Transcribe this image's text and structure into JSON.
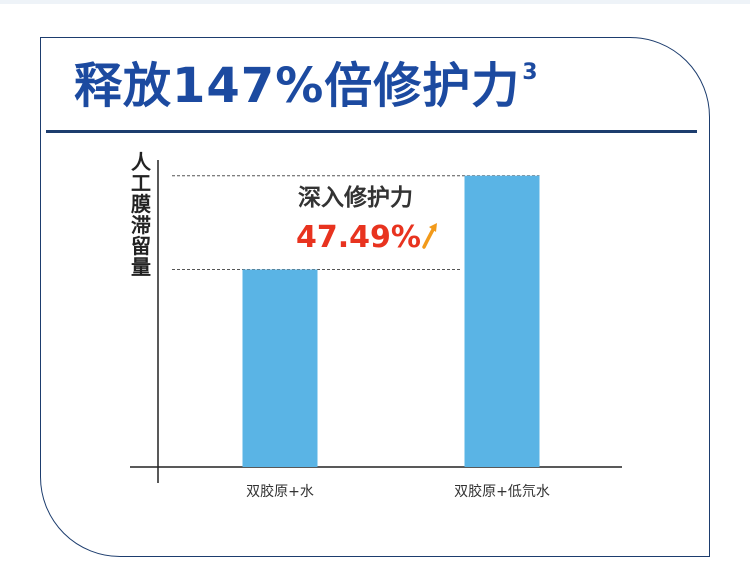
{
  "title": {
    "text": "释放147%倍修护力",
    "superscript": "3"
  },
  "chart_data": {
    "type": "bar",
    "categories": [
      "双胶原+水",
      "双胶原+低氘水"
    ],
    "values": [
      1.0,
      1.4749
    ],
    "ylabel": "人工膜滞留量",
    "ylim": [
      0,
      1.6
    ],
    "bar_color": "#5ab4e5",
    "annotation": {
      "label": "深入修护力",
      "value": "47.49%",
      "color": "#e8331f",
      "arrow_color": "#f29a1a"
    }
  }
}
